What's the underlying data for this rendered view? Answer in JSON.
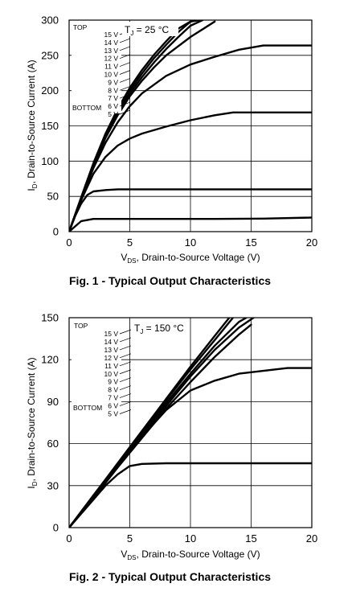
{
  "chart_data": [
    {
      "type": "line",
      "caption": "Fig. 1 - Typical Output Characteristics",
      "xlabel_prefix": "V",
      "xlabel_sub": "DS",
      "xlabel_rest": ", Drain-to-Source Voltage (V)",
      "ylabel_prefix": "I",
      "ylabel_sub": "D",
      "ylabel_rest": ", Drain-to-Source Current (A)",
      "condition_prefix": "T",
      "condition_sub": "J",
      "condition_rest": " = 25 °C",
      "xlim": [
        0,
        20
      ],
      "ylim": [
        0,
        300
      ],
      "xticks": [
        "0",
        "5",
        "10",
        "15",
        "20"
      ],
      "yticks": [
        "0",
        "50",
        "100",
        "150",
        "200",
        "250",
        "300"
      ],
      "xtick_values": [
        0,
        5,
        10,
        15,
        20
      ],
      "ytick_values": [
        0,
        50,
        100,
        150,
        200,
        250,
        300
      ],
      "grid": true,
      "legend_top": "TOP",
      "legend_bottom": "BOTTOM",
      "legend_entries": [
        "15 V",
        "14 V",
        "13 V",
        "12 V",
        "11 V",
        "10 V",
        "9 V",
        "8 V",
        "7 V",
        "6 V",
        "5 V"
      ],
      "series": [
        {
          "x": [
            0,
            1,
            2,
            4,
            8,
            12,
            16,
            20
          ],
          "y": [
            0,
            15,
            18,
            18,
            18,
            18,
            18.5,
            20
          ]
        },
        {
          "x": [
            0,
            0.5,
            1,
            1.5,
            2,
            3,
            4,
            8,
            12,
            16,
            20
          ],
          "y": [
            0,
            22,
            40,
            52,
            57,
            59,
            60,
            60,
            60,
            60,
            60
          ]
        },
        {
          "x": [
            0,
            1,
            2,
            3,
            4,
            5,
            6,
            8,
            10,
            12,
            13.5,
            16,
            20
          ],
          "y": [
            0,
            45,
            82,
            106,
            122,
            132,
            139,
            149,
            158,
            165,
            169,
            169,
            169
          ]
        },
        {
          "x": [
            0,
            1,
            2,
            3,
            4,
            5,
            6,
            8,
            10,
            12,
            14,
            16,
            20
          ],
          "y": [
            0,
            46,
            90,
            126,
            155,
            178,
            196,
            221,
            237,
            248,
            258,
            264,
            264
          ]
        },
        {
          "x": [
            0,
            1,
            2,
            3,
            4,
            5,
            6,
            7,
            8,
            10,
            12
          ],
          "y": [
            0,
            47,
            93,
            133,
            165,
            192,
            214,
            233,
            250,
            276,
            298
          ]
        },
        {
          "x": [
            0,
            1,
            2,
            3,
            4,
            5,
            6,
            7,
            8,
            9,
            10,
            11
          ],
          "y": [
            0,
            48,
            95,
            135,
            168,
            196,
            219,
            240,
            259,
            276,
            292,
            300
          ]
        },
        {
          "x": [
            0,
            1,
            2,
            3,
            4,
            5,
            6,
            7,
            8,
            9,
            10,
            10.8
          ],
          "y": [
            0,
            48,
            96,
            137,
            171,
            200,
            224,
            246,
            265,
            283,
            298,
            300
          ]
        },
        {
          "x": [
            0,
            1,
            2,
            3,
            4,
            5,
            6,
            7,
            8,
            9,
            10,
            10.5
          ],
          "y": [
            0,
            49,
            97,
            139,
            174,
            204,
            229,
            251,
            270,
            288,
            298,
            300
          ]
        }
      ]
    },
    {
      "type": "line",
      "caption": "Fig. 2 - Typical Output Characteristics",
      "xlabel_prefix": "V",
      "xlabel_sub": "DS",
      "xlabel_rest": ", Drain-to-Source Voltage (V)",
      "ylabel_prefix": "I",
      "ylabel_sub": "D",
      "ylabel_rest": ", Drain-to-Source Current (A)",
      "condition_prefix": "T",
      "condition_sub": "J",
      "condition_rest": " = 150 °C",
      "xlim": [
        0,
        20
      ],
      "ylim": [
        0,
        150
      ],
      "xticks": [
        "0",
        "5",
        "10",
        "15",
        "20"
      ],
      "yticks": [
        "0",
        "30",
        "60",
        "90",
        "120",
        "150"
      ],
      "xtick_values": [
        0,
        5,
        10,
        15,
        20
      ],
      "ytick_values": [
        0,
        30,
        60,
        90,
        120,
        150
      ],
      "grid": true,
      "legend_top": "TOP",
      "legend_bottom": "BOTTOM",
      "legend_entries": [
        "15 V",
        "14 V",
        "13 V",
        "12 V",
        "11 V",
        "10 V",
        "9 V",
        "8 V",
        "7 V",
        "6 V",
        "5 V"
      ],
      "series": [
        {
          "x": [
            0,
            1,
            2,
            3,
            4,
            5,
            6,
            8,
            12,
            16,
            20
          ],
          "y": [
            0,
            10,
            20,
            30,
            38,
            44,
            45.5,
            46,
            46,
            46,
            46
          ]
        },
        {
          "x": [
            0,
            1,
            2,
            3,
            4,
            5,
            6,
            8,
            10,
            12,
            14,
            16,
            18,
            20
          ],
          "y": [
            0,
            11,
            22,
            33,
            44,
            55,
            65,
            84,
            98,
            105,
            110,
            112,
            114,
            114
          ]
        },
        {
          "x": [
            0,
            2,
            4,
            6,
            8,
            10,
            12,
            14,
            15
          ],
          "y": [
            0,
            21,
            43,
            64,
            85,
            104,
            122,
            138,
            145
          ]
        },
        {
          "x": [
            0,
            2,
            4,
            6,
            8,
            10,
            12,
            14,
            15.2
          ],
          "y": [
            0,
            22,
            44,
            66,
            87,
            108,
            127,
            143,
            150
          ]
        },
        {
          "x": [
            0,
            2,
            4,
            6,
            8,
            10,
            12,
            14,
            14.6
          ],
          "y": [
            0,
            22,
            45,
            67,
            89,
            110,
            130,
            147,
            150
          ]
        },
        {
          "x": [
            0,
            2,
            4,
            6,
            8,
            10,
            12,
            13.5
          ],
          "y": [
            0,
            23,
            45,
            68,
            91,
            113,
            134,
            150
          ]
        },
        {
          "x": [
            0,
            2,
            4,
            6,
            8,
            10,
            12,
            13.2
          ],
          "y": [
            0,
            23,
            46,
            69,
            92,
            115,
            137,
            150
          ]
        }
      ]
    }
  ]
}
